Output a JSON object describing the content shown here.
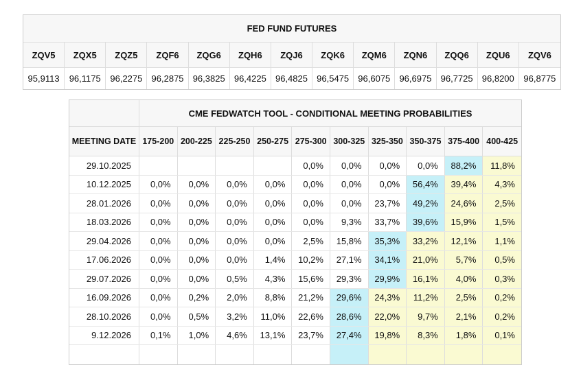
{
  "colors": {
    "highlight_max": "#c6f0f8",
    "highlight_tail": "#fafad2",
    "header_bg": "#f7f7f7",
    "border": "#cccccc"
  },
  "futures": {
    "title": "FED FUND FUTURES",
    "columns": [
      "ZQV5",
      "ZQX5",
      "ZQZ5",
      "ZQF6",
      "ZQG6",
      "ZQH6",
      "ZQJ6",
      "ZQK6",
      "ZQM6",
      "ZQN6",
      "ZQQ6",
      "ZQU6",
      "ZQV6"
    ],
    "values": [
      "95,9113",
      "96,1175",
      "96,2275",
      "96,2875",
      "96,3825",
      "96,4225",
      "96,4825",
      "96,5475",
      "96,6075",
      "96,6975",
      "96,7725",
      "96,8200",
      "96,8775"
    ]
  },
  "fedwatch": {
    "title": "CME FEDWATCH TOOL - CONDITIONAL MEETING PROBABILITIES",
    "date_header": "MEETING DATE",
    "bins": [
      "175-200",
      "200-225",
      "225-250",
      "250-275",
      "275-300",
      "300-325",
      "325-350",
      "350-375",
      "375-400",
      "400-425"
    ],
    "rows": [
      {
        "date": "29.10.2025",
        "values": [
          "",
          "",
          "",
          "",
          "0,0%",
          "0,0%",
          "0,0%",
          "0,0%",
          "88,2%",
          "11,8%"
        ],
        "max_col": 8
      },
      {
        "date": "10.12.2025",
        "values": [
          "0,0%",
          "0,0%",
          "0,0%",
          "0,0%",
          "0,0%",
          "0,0%",
          "0,0%",
          "56,4%",
          "39,4%",
          "4,3%"
        ],
        "max_col": 7
      },
      {
        "date": "28.01.2026",
        "values": [
          "0,0%",
          "0,0%",
          "0,0%",
          "0,0%",
          "0,0%",
          "0,0%",
          "23,7%",
          "49,2%",
          "24,6%",
          "2,5%"
        ],
        "max_col": 7
      },
      {
        "date": "18.03.2026",
        "values": [
          "0,0%",
          "0,0%",
          "0,0%",
          "0,0%",
          "0,0%",
          "9,3%",
          "33,7%",
          "39,6%",
          "15,9%",
          "1,5%"
        ],
        "max_col": 7
      },
      {
        "date": "29.04.2026",
        "values": [
          "0,0%",
          "0,0%",
          "0,0%",
          "0,0%",
          "2,5%",
          "15,8%",
          "35,3%",
          "33,2%",
          "12,1%",
          "1,1%"
        ],
        "max_col": 6
      },
      {
        "date": "17.06.2026",
        "values": [
          "0,0%",
          "0,0%",
          "0,0%",
          "1,4%",
          "10,2%",
          "27,1%",
          "34,1%",
          "21,0%",
          "5,7%",
          "0,5%"
        ],
        "max_col": 6
      },
      {
        "date": "29.07.2026",
        "values": [
          "0,0%",
          "0,0%",
          "0,5%",
          "4,3%",
          "15,6%",
          "29,3%",
          "29,9%",
          "16,1%",
          "4,0%",
          "0,3%"
        ],
        "max_col": 6
      },
      {
        "date": "16.09.2026",
        "values": [
          "0,0%",
          "0,2%",
          "2,0%",
          "8,8%",
          "21,2%",
          "29,6%",
          "24,3%",
          "11,2%",
          "2,5%",
          "0,2%"
        ],
        "max_col": 5
      },
      {
        "date": "28.10.2026",
        "values": [
          "0,0%",
          "0,5%",
          "3,2%",
          "11,0%",
          "22,6%",
          "28,6%",
          "22,0%",
          "9,7%",
          "2,1%",
          "0,2%"
        ],
        "max_col": 5
      },
      {
        "date": "9.12.2026",
        "values": [
          "0,1%",
          "1,0%",
          "4,6%",
          "13,1%",
          "23,7%",
          "27,4%",
          "19,8%",
          "8,3%",
          "1,8%",
          "0,1%"
        ],
        "max_col": 5
      },
      {
        "date": "",
        "values": [
          "",
          "",
          "",
          "",
          "",
          "",
          "",
          "",
          "",
          ""
        ],
        "max_col": 5,
        "partial": true
      }
    ]
  }
}
